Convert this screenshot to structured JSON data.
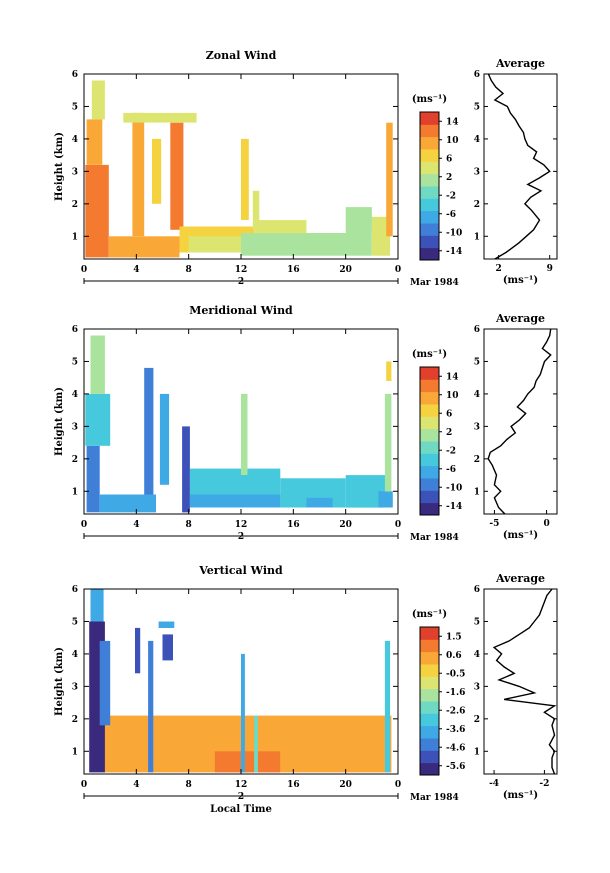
{
  "chart_data": [
    {
      "type": "heatmap",
      "title": "Zonal Wind",
      "xlabel": "",
      "ylabel": "Height (km)",
      "x_ticks": [
        "0",
        "4",
        "8",
        "12",
        "16",
        "20",
        "0"
      ],
      "y_ticks": [
        "1",
        "2",
        "3",
        "4",
        "5",
        "6"
      ],
      "date_ticks": [
        "2"
      ],
      "date_label": "Mar 1984",
      "xlim": [
        0,
        24
      ],
      "ylim": [
        0.3,
        6
      ],
      "colorbar": {
        "unit": "(ms⁻¹)",
        "ticks": [
          "14",
          "10",
          "6",
          "2",
          "-2",
          "-6",
          "-10",
          "-14"
        ],
        "range": [
          -16,
          16
        ]
      },
      "profile": {
        "title": "Average",
        "xlabel": "(ms⁻¹)",
        "x_ticks": [
          "2",
          "9"
        ],
        "x_tick_values": [
          2,
          9
        ],
        "xlim": [
          0,
          10
        ],
        "y_ticks": [
          "1",
          "2",
          "3",
          "4",
          "5",
          "6"
        ],
        "height_km": [
          0.3,
          0.5,
          0.8,
          1.0,
          1.2,
          1.5,
          1.8,
          2.0,
          2.2,
          2.4,
          2.6,
          2.8,
          3.0,
          3.2,
          3.4,
          3.6,
          3.8,
          4.0,
          4.2,
          4.4,
          4.6,
          4.8,
          5.0,
          5.2,
          5.4,
          5.6,
          5.8,
          6.0
        ],
        "mean": [
          1.5,
          3.0,
          4.8,
          5.8,
          6.8,
          7.6,
          6.5,
          5.6,
          6.4,
          7.8,
          6.0,
          7.6,
          9.0,
          8.2,
          6.8,
          7.2,
          6.0,
          5.6,
          5.4,
          4.8,
          4.3,
          3.6,
          3.2,
          1.5,
          2.6,
          1.6,
          1.0,
          0.6
        ]
      },
      "field": [
        {
          "t": [
            0.1,
            1.9
          ],
          "h": [
            0.35,
            3.2
          ],
          "v": 11
        },
        {
          "t": [
            0.2,
            1.4
          ],
          "h": [
            3.2,
            4.6
          ],
          "v": 9
        },
        {
          "t": [
            0.6,
            1.6
          ],
          "h": [
            4.6,
            5.8
          ],
          "v": 3
        },
        {
          "t": [
            1.9,
            7.3
          ],
          "h": [
            0.35,
            1.0
          ],
          "v": 8
        },
        {
          "t": [
            3.7,
            4.6
          ],
          "h": [
            1.0,
            4.8
          ],
          "v": 10
        },
        {
          "t": [
            5.2,
            5.9
          ],
          "h": [
            2.0,
            4.0
          ],
          "v": 7
        },
        {
          "t": [
            6.6,
            7.6
          ],
          "h": [
            1.2,
            4.5
          ],
          "v": 12
        },
        {
          "t": [
            3.0,
            8.6
          ],
          "h": [
            4.5,
            4.8
          ],
          "v": 4
        },
        {
          "t": [
            7.3,
            13.0
          ],
          "h": [
            0.5,
            1.3
          ],
          "v": 6
        },
        {
          "t": [
            8.0,
            12.0
          ],
          "h": [
            0.5,
            1.0
          ],
          "v": 4
        },
        {
          "t": [
            12.0,
            18.5
          ],
          "h": [
            0.4,
            1.1
          ],
          "v": 2
        },
        {
          "t": [
            13.0,
            17.0
          ],
          "h": [
            1.1,
            1.5
          ],
          "v": 3
        },
        {
          "t": [
            18.5,
            22.0
          ],
          "h": [
            0.4,
            1.1
          ],
          "v": 0
        },
        {
          "t": [
            22.0,
            23.4
          ],
          "h": [
            0.4,
            1.6
          ],
          "v": 3
        },
        {
          "t": [
            12.0,
            12.6
          ],
          "h": [
            1.5,
            4.0
          ],
          "v": 7
        },
        {
          "t": [
            12.9,
            13.4
          ],
          "h": [
            1.2,
            2.4
          ],
          "v": 5
        },
        {
          "t": [
            20.0,
            22.0
          ],
          "h": [
            1.1,
            1.9
          ],
          "v": 1
        },
        {
          "t": [
            23.1,
            23.6
          ],
          "h": [
            1.0,
            4.5
          ],
          "v": 9
        }
      ]
    },
    {
      "type": "heatmap",
      "title": "Meridional Wind",
      "xlabel": "",
      "ylabel": "Height (km)",
      "x_ticks": [
        "0",
        "4",
        "8",
        "12",
        "16",
        "20",
        "0"
      ],
      "y_ticks": [
        "1",
        "2",
        "3",
        "4",
        "5",
        "6"
      ],
      "date_ticks": [
        "2"
      ],
      "date_label": "Mar 1984",
      "xlim": [
        0,
        24
      ],
      "ylim": [
        0.3,
        6
      ],
      "colorbar": {
        "unit": "(ms⁻¹)",
        "ticks": [
          "14",
          "10",
          "6",
          "2",
          "-2",
          "-6",
          "-10",
          "-14"
        ],
        "range": [
          -16,
          16
        ]
      },
      "profile": {
        "title": "Average",
        "xlabel": "(ms⁻¹)",
        "x_ticks": [
          "-5",
          "0"
        ],
        "x_tick_values": [
          -5,
          0
        ],
        "xlim": [
          -6,
          1
        ],
        "y_ticks": [
          "1",
          "2",
          "3",
          "4",
          "5",
          "6"
        ],
        "height_km": [
          0.3,
          0.5,
          0.8,
          1.0,
          1.2,
          1.5,
          1.8,
          2.0,
          2.2,
          2.4,
          2.6,
          2.8,
          3.0,
          3.2,
          3.4,
          3.6,
          3.8,
          4.0,
          4.2,
          4.4,
          4.6,
          4.8,
          5.0,
          5.2,
          5.4,
          5.6,
          5.8,
          6.0
        ],
        "mean": [
          -4.0,
          -4.6,
          -5.0,
          -4.4,
          -5.0,
          -4.8,
          -5.2,
          -5.6,
          -5.4,
          -4.4,
          -3.8,
          -3.0,
          -3.4,
          -2.6,
          -2.0,
          -2.8,
          -2.2,
          -1.8,
          -1.2,
          -1.0,
          -0.6,
          -0.4,
          -0.2,
          0.4,
          -0.4,
          0.0,
          0.3,
          0.4
        ]
      },
      "field": [
        {
          "t": [
            0.2,
            1.2
          ],
          "h": [
            0.35,
            2.4
          ],
          "v": -9
        },
        {
          "t": [
            0.1,
            2.0
          ],
          "h": [
            2.4,
            4.0
          ],
          "v": -4
        },
        {
          "t": [
            0.5,
            1.6
          ],
          "h": [
            4.0,
            5.8
          ],
          "v": 0
        },
        {
          "t": [
            1.2,
            5.5
          ],
          "h": [
            0.35,
            0.9
          ],
          "v": -7
        },
        {
          "t": [
            4.6,
            5.3
          ],
          "h": [
            0.9,
            4.8
          ],
          "v": -10
        },
        {
          "t": [
            5.8,
            6.5
          ],
          "h": [
            1.2,
            4.0
          ],
          "v": -8
        },
        {
          "t": [
            7.5,
            8.1
          ],
          "h": [
            0.35,
            3.0
          ],
          "v": -13
        },
        {
          "t": [
            8.1,
            15.0
          ],
          "h": [
            0.5,
            1.7
          ],
          "v": -4
        },
        {
          "t": [
            8.1,
            15.0
          ],
          "h": [
            0.5,
            0.9
          ],
          "v": -7
        },
        {
          "t": [
            15.0,
            20.0
          ],
          "h": [
            0.5,
            1.4
          ],
          "v": -4
        },
        {
          "t": [
            17.0,
            19.0
          ],
          "h": [
            0.5,
            0.8
          ],
          "v": -6
        },
        {
          "t": [
            20.0,
            23.0
          ],
          "h": [
            0.5,
            1.5
          ],
          "v": -3
        },
        {
          "t": [
            22.5,
            23.6
          ],
          "h": [
            0.5,
            1.0
          ],
          "v": -8
        },
        {
          "t": [
            12.0,
            12.5
          ],
          "h": [
            1.5,
            4.0
          ],
          "v": 2
        },
        {
          "t": [
            23.0,
            23.5
          ],
          "h": [
            1.0,
            4.0
          ],
          "v": 1
        },
        {
          "t": [
            23.1,
            23.5
          ],
          "h": [
            4.4,
            5.0
          ],
          "v": 6
        }
      ]
    },
    {
      "type": "heatmap",
      "title": "Vertical Wind",
      "xlabel": "Local Time",
      "ylabel": "Height (km)",
      "x_ticks": [
        "0",
        "4",
        "8",
        "12",
        "16",
        "20",
        "0"
      ],
      "y_ticks": [
        "1",
        "2",
        "3",
        "4",
        "5",
        "6"
      ],
      "date_ticks": [
        "2"
      ],
      "date_label": "Mar 1984",
      "xlim": [
        0,
        24
      ],
      "ylim": [
        0.3,
        6
      ],
      "colorbar": {
        "unit": "(ms⁻¹)",
        "ticks": [
          "1.5",
          "0.6",
          "-0.5",
          "-1.6",
          "-2.6",
          "-3.6",
          "-4.6",
          "-5.6"
        ],
        "range": [
          -6.2,
          2.0
        ]
      },
      "profile": {
        "title": "Average",
        "xlabel": "(ms⁻¹)",
        "x_ticks": [
          "-4",
          "-2"
        ],
        "x_tick_values": [
          -4,
          -2
        ],
        "xlim": [
          -4.4,
          -1.5
        ],
        "y_ticks": [
          "1",
          "2",
          "3",
          "4",
          "5",
          "6"
        ],
        "height_km": [
          0.3,
          0.5,
          0.8,
          1.0,
          1.2,
          1.5,
          1.8,
          2.0,
          2.2,
          2.4,
          2.6,
          2.8,
          3.0,
          3.2,
          3.4,
          3.6,
          3.8,
          4.0,
          4.2,
          4.4,
          4.6,
          4.8,
          5.0,
          5.2,
          5.4,
          5.6,
          5.8,
          6.0
        ],
        "mean": [
          -1.6,
          -1.7,
          -1.7,
          -1.6,
          -1.8,
          -1.6,
          -1.7,
          -1.6,
          -2.0,
          -1.6,
          -3.6,
          -2.4,
          -3.0,
          -3.8,
          -3.2,
          -3.6,
          -3.9,
          -3.7,
          -4.0,
          -3.4,
          -3.0,
          -2.6,
          -2.4,
          -2.2,
          -2.1,
          -2.0,
          -1.9,
          -1.7
        ]
      },
      "field": [
        {
          "t": [
            1.5,
            23.5
          ],
          "h": [
            0.35,
            2.1
          ],
          "v": 0.6
        },
        {
          "t": [
            10.0,
            15.0
          ],
          "h": [
            0.35,
            1.0
          ],
          "v": 0.9
        },
        {
          "t": [
            19.0,
            22.0
          ],
          "h": [
            0.6,
            1.4
          ],
          "v": 0.2
        },
        {
          "t": [
            0.4,
            1.6
          ],
          "h": [
            0.35,
            5.0
          ],
          "v": -5.6
        },
        {
          "t": [
            0.5,
            1.5
          ],
          "h": [
            5.0,
            6.0
          ],
          "v": -3.6
        },
        {
          "t": [
            1.2,
            2.0
          ],
          "h": [
            1.8,
            4.4
          ],
          "v": -4.2
        },
        {
          "t": [
            3.9,
            4.3
          ],
          "h": [
            3.4,
            4.8
          ],
          "v": -5.0
        },
        {
          "t": [
            4.9,
            5.3
          ],
          "h": [
            0.35,
            4.4
          ],
          "v": -4.6
        },
        {
          "t": [
            6.0,
            6.8
          ],
          "h": [
            3.8,
            4.6
          ],
          "v": -5.0
        },
        {
          "t": [
            5.7,
            6.9
          ],
          "h": [
            4.8,
            5.0
          ],
          "v": -3.6
        },
        {
          "t": [
            12.0,
            12.3
          ],
          "h": [
            0.35,
            4.0
          ],
          "v": -3.6
        },
        {
          "t": [
            13.0,
            13.3
          ],
          "h": [
            0.35,
            2.1
          ],
          "v": -2.6
        },
        {
          "t": [
            23.0,
            23.4
          ],
          "h": [
            0.35,
            4.4
          ],
          "v": -3.0
        }
      ]
    }
  ]
}
